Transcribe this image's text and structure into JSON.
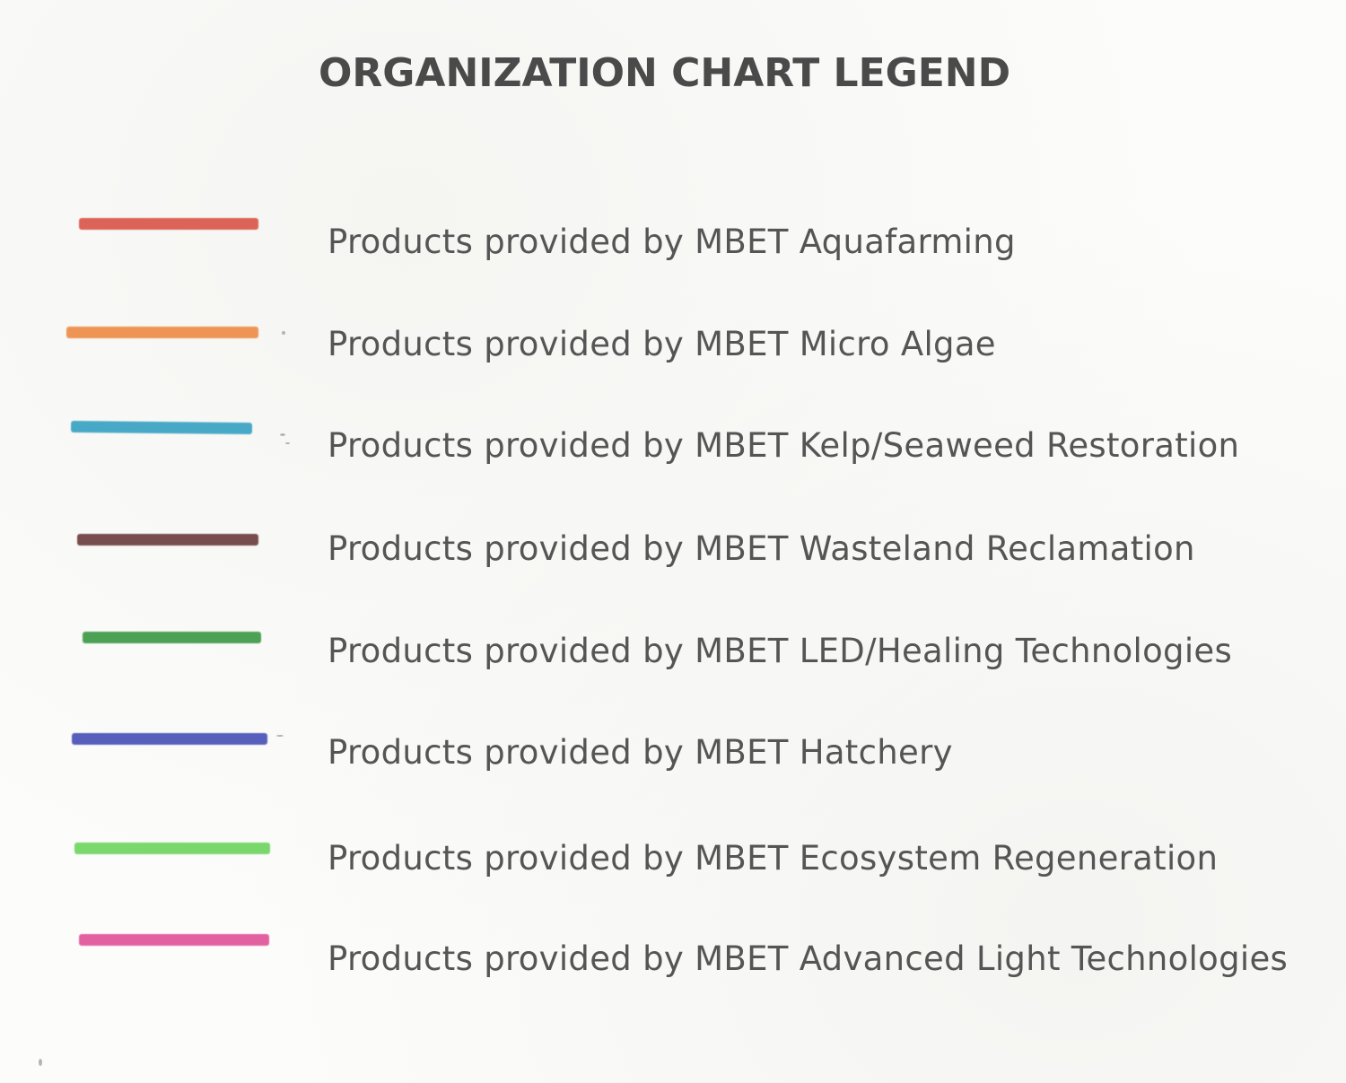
{
  "title": "ORGANIZATION CHART LEGEND",
  "legend": [
    {
      "label": "Products provided by MBET Aquafarming",
      "color": "#d9574a"
    },
    {
      "label": "Products provided by MBET Micro Algae",
      "color": "#ee8c48"
    },
    {
      "label": "Products provided by MBET Kelp/Seaweed Restoration",
      "color": "#3aa3c4"
    },
    {
      "label": "Products provided by MBET Wasteland Reclamation",
      "color": "#6e3f3f"
    },
    {
      "label": "Products provided by MBET LED/Healing Technologies",
      "color": "#3f9a48"
    },
    {
      "label": "Products provided by MBET Hatchery",
      "color": "#4a52b8"
    },
    {
      "label": "Products provided by MBET Ecosystem Regeneration",
      "color": "#6fd560"
    },
    {
      "label": "Products provided by MBET Advanced Light Technologies",
      "color": "#e0559a"
    }
  ]
}
